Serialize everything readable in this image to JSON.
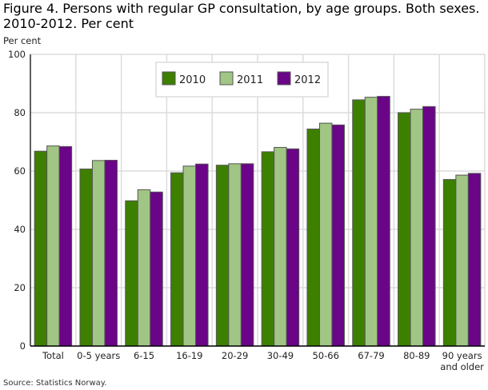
{
  "chart_data": {
    "type": "bar",
    "title": "Figure 4. Persons with regular GP consultation, by age groups. Both sexes. 2010-2012. Per cent",
    "ylabel": "Per cent",
    "xlabel": "",
    "ylim": [
      0,
      100
    ],
    "yticks": [
      0,
      20,
      40,
      60,
      80,
      100
    ],
    "grid": true,
    "legend_position": "top-center",
    "categories": [
      "Total",
      "0-5 years",
      "6-15",
      "16-19",
      "20-29",
      "30-49",
      "50-66",
      "67-79",
      "80-89",
      "90  years and older"
    ],
    "series": [
      {
        "name": "2010",
        "color": "#3d8000",
        "values": [
          66.8,
          60.7,
          49.8,
          59.4,
          62.0,
          66.6,
          74.4,
          84.4,
          80.0,
          57.1
        ]
      },
      {
        "name": "2011",
        "color": "#a0c584",
        "values": [
          68.6,
          63.6,
          53.6,
          61.7,
          62.5,
          68.1,
          76.4,
          85.3,
          81.2,
          58.6
        ]
      },
      {
        "name": "2012",
        "color": "#6a0587",
        "values": [
          68.4,
          63.7,
          52.8,
          62.4,
          62.5,
          67.6,
          75.8,
          85.6,
          82.1,
          59.2
        ]
      }
    ],
    "source": "Source: Statistics Norway."
  }
}
